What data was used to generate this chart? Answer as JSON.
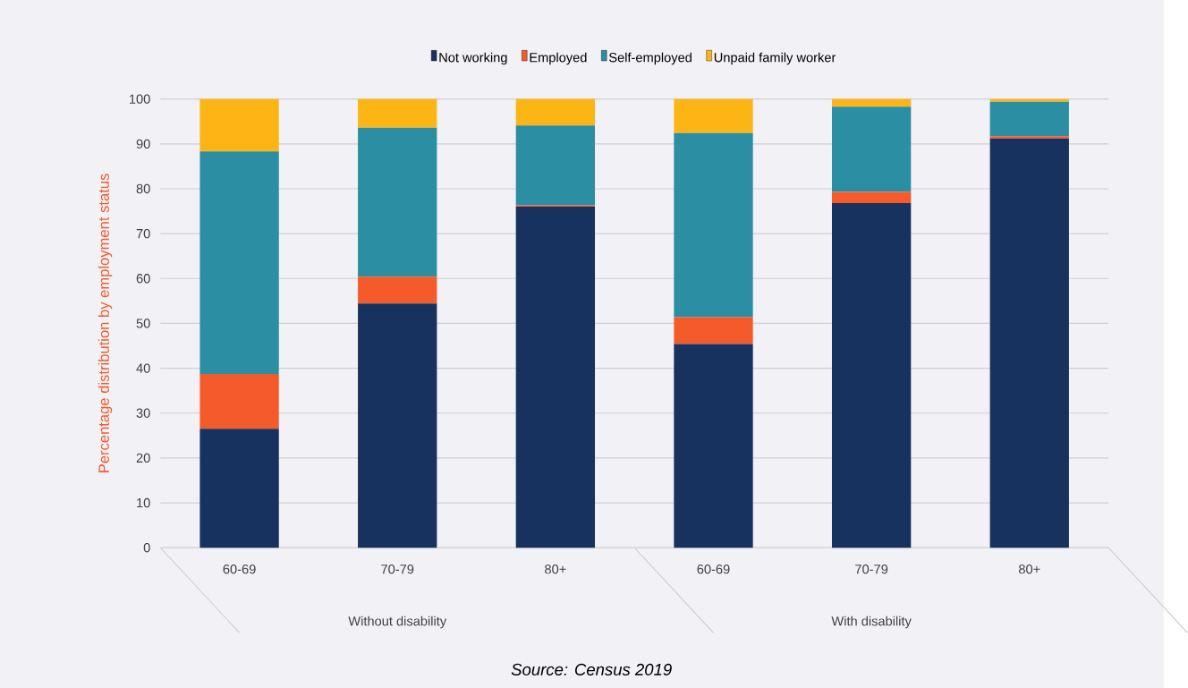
{
  "chart_data": {
    "type": "bar",
    "stacked": true,
    "categories": [
      "60-69",
      "70-79",
      "80+",
      "60-69",
      "70-79",
      "80+"
    ],
    "series": [
      {
        "name": "Not working",
        "color": "#17325f",
        "values": [
          26.5,
          54.4,
          76.0,
          45.4,
          76.8,
          91.2
        ]
      },
      {
        "name": "Employed",
        "color": "#f45a2a",
        "values": [
          12.2,
          6.0,
          0.3,
          6.0,
          2.5,
          0.5
        ]
      },
      {
        "name": "Self-employed",
        "color": "#2c8ea3",
        "values": [
          49.6,
          33.2,
          17.8,
          41.0,
          19.0,
          7.7
        ]
      },
      {
        "name": "Unpaid family worker",
        "color": "#fdb515",
        "values": [
          11.7,
          6.4,
          5.9,
          7.6,
          1.7,
          0.6
        ]
      }
    ],
    "ylabel": "Percentage distribution by employment status",
    "ylim": [
      0,
      100
    ],
    "yticks": [
      0,
      10,
      20,
      30,
      40,
      50,
      60,
      70,
      80,
      90,
      100
    ],
    "grid": "y",
    "legend": "top",
    "annotations": [
      "Without disability",
      "With disability",
      "Source: Census 2019"
    ]
  }
}
